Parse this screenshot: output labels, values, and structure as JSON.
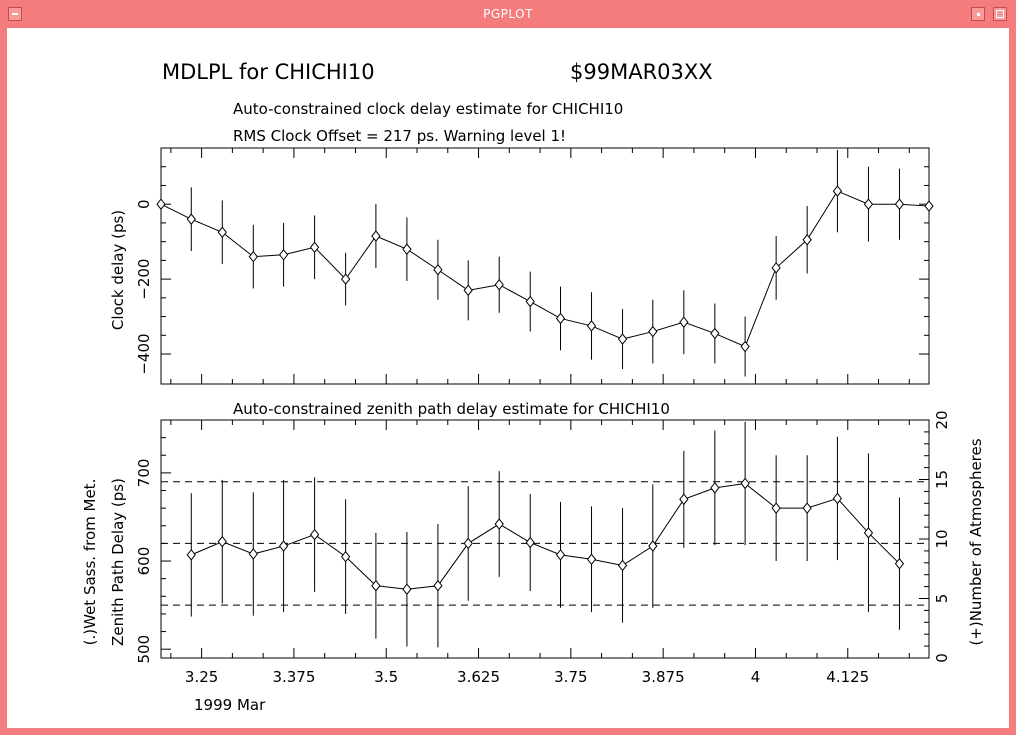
{
  "window": {
    "title": "PGPLOT"
  },
  "plot": {
    "header_left": "MDLPL for CHICHI10",
    "header_right": "$99MAR03XX",
    "top_title": "Auto-constrained clock delay estimate for CHICHI10",
    "rms_line": "RMS Clock Offset = 217 ps. Warning level 1!",
    "bottom_title": "Auto-constrained zenith path delay estimate for CHICHI10",
    "top_ylabel": "Clock delay (ps)",
    "bottom_ylabel_1": "(.)Wet Sass. from Met.",
    "bottom_ylabel_2": "Zenith Path Delay (ps)",
    "right_ylabel": "(+)Number of Atmospheres",
    "date_label": "1999 Mar"
  },
  "chart_data": [
    {
      "type": "line",
      "title": "Auto-constrained clock delay estimate for CHICHI10",
      "ylabel": "Clock delay (ps)",
      "xlim": [
        3.195,
        4.235
      ],
      "ylim": [
        -480,
        150
      ],
      "yticks": [
        0,
        -200,
        -400
      ],
      "xticks": [
        3.25,
        3.375,
        3.5,
        3.625,
        3.75,
        3.875,
        4,
        4.125
      ],
      "series": [
        {
          "x": [
            3.195,
            3.236,
            3.278,
            3.32,
            3.361,
            3.403,
            3.445,
            3.486,
            3.528,
            3.57,
            3.611,
            3.653,
            3.695,
            3.736,
            3.778,
            3.82,
            3.861,
            3.903,
            3.945,
            3.986,
            4.028,
            4.07,
            4.111,
            4.153,
            4.195,
            4.235
          ],
          "y": [
            0,
            -40,
            -75,
            -140,
            -135,
            -115,
            -200,
            -85,
            -120,
            -175,
            -230,
            -215,
            -260,
            -305,
            -325,
            -360,
            -340,
            -315,
            -345,
            -380,
            -170,
            -95,
            35,
            0,
            0,
            -5
          ],
          "err": [
            85,
            85,
            85,
            85,
            85,
            85,
            70,
            85,
            85,
            80,
            80,
            75,
            80,
            85,
            90,
            80,
            85,
            85,
            80,
            80,
            85,
            90,
            110,
            100,
            95,
            90
          ]
        }
      ]
    },
    {
      "type": "line",
      "title": "Auto-constrained zenith path delay estimate for CHICHI10",
      "ylabel": "Zenith Path Delay (ps)",
      "ylim": [
        490,
        760
      ],
      "yticks": [
        500,
        600,
        700
      ],
      "y2label": "(+)Number of Atmospheres",
      "y2lim": [
        0,
        20
      ],
      "y2ticks": [
        0,
        5,
        10,
        15,
        20
      ],
      "dashed_levels": [
        690,
        620,
        550
      ],
      "series": [
        {
          "x": [
            3.236,
            3.278,
            3.32,
            3.361,
            3.403,
            3.445,
            3.486,
            3.528,
            3.57,
            3.611,
            3.653,
            3.695,
            3.736,
            3.778,
            3.82,
            3.861,
            3.903,
            3.945,
            3.986,
            4.028,
            4.07,
            4.111,
            4.153,
            4.195
          ],
          "y": [
            607,
            622,
            608,
            617,
            630,
            605,
            572,
            568,
            572,
            620,
            642,
            621,
            607,
            602,
            595,
            617,
            670,
            683,
            688,
            660,
            660,
            671,
            632,
            597
          ],
          "err": [
            70,
            70,
            70,
            75,
            65,
            65,
            60,
            65,
            70,
            65,
            60,
            55,
            60,
            60,
            65,
            70,
            55,
            65,
            70,
            60,
            60,
            70,
            90,
            75
          ]
        }
      ]
    }
  ]
}
